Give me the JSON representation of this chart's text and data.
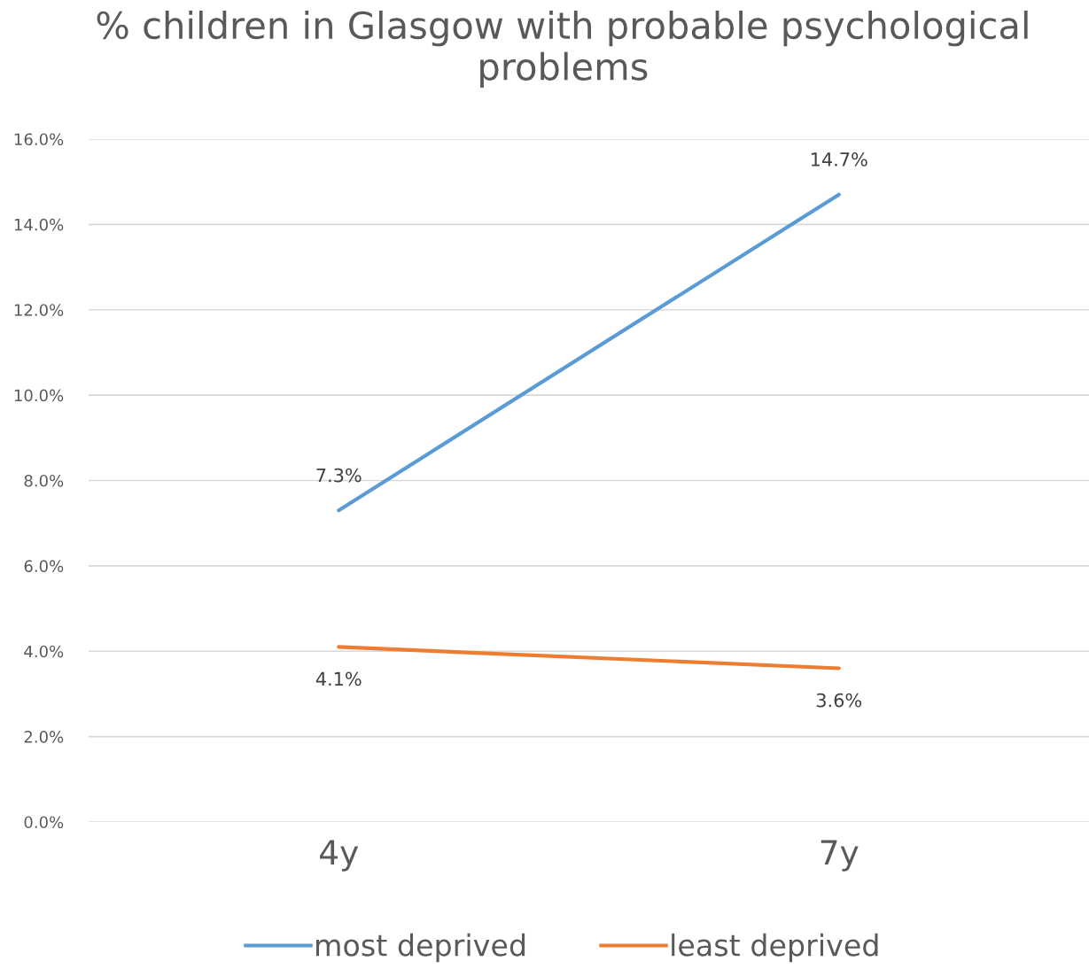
{
  "chart_data": {
    "type": "line",
    "title": "% children in Glasgow with probable psychological problems",
    "categories": [
      "4y",
      "7y"
    ],
    "series": [
      {
        "name": "most deprived",
        "color": "#5b9bd5",
        "values": [
          7.3,
          14.7
        ],
        "value_labels": [
          "7.3%",
          "14.7%"
        ]
      },
      {
        "name": "least deprived",
        "color": "#ed7d31",
        "values": [
          4.1,
          3.6
        ],
        "value_labels": [
          "4.1%",
          "3.6%"
        ]
      }
    ],
    "ylim": [
      0,
      16
    ],
    "yticks": [
      {
        "value": 0,
        "label": "0.0%"
      },
      {
        "value": 2,
        "label": "2.0%"
      },
      {
        "value": 4,
        "label": "4.0%"
      },
      {
        "value": 6,
        "label": "6.0%"
      },
      {
        "value": 8,
        "label": "8.0%"
      },
      {
        "value": 10,
        "label": "10.0%"
      },
      {
        "value": 12,
        "label": "12.0%"
      },
      {
        "value": 14,
        "label": "14.0%"
      },
      {
        "value": 16,
        "label": "16.0%"
      }
    ],
    "grid": "y",
    "legend": "bottom",
    "marker": "none",
    "line_style": "solid"
  }
}
